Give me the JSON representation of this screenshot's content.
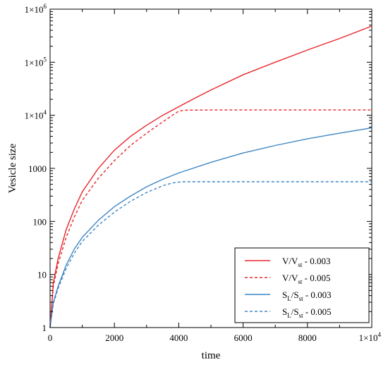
{
  "chart_data": {
    "type": "line",
    "xlabel": "time",
    "ylabel": "Vesicle size",
    "x_axis": {
      "range": [
        0,
        10000
      ],
      "scale": "linear",
      "ticks": [
        {
          "value": 0,
          "label": "0"
        },
        {
          "value": 2000,
          "label": "2000"
        },
        {
          "value": 4000,
          "label": "4000"
        },
        {
          "value": 6000,
          "label": "6000"
        },
        {
          "value": 8000,
          "label": "8000"
        },
        {
          "value": 10000,
          "label_base": "1×10",
          "label_exp": "4"
        }
      ]
    },
    "y_axis": {
      "range": [
        1,
        1000000
      ],
      "scale": "log",
      "ticks": [
        {
          "value": 1,
          "label": "1"
        },
        {
          "value": 10,
          "label": "10"
        },
        {
          "value": 100,
          "label": "100"
        },
        {
          "value": 1000,
          "label": "1000"
        },
        {
          "value": 10000,
          "label_base": "1×10",
          "label_exp": "4"
        },
        {
          "value": 100000,
          "label_base": "1×10",
          "label_exp": "5"
        },
        {
          "value": 1000000,
          "label_base": "1×10",
          "label_exp": "6"
        }
      ]
    },
    "grid": false,
    "legend_position": "bottom-right",
    "series": [
      {
        "name_main": "V/V",
        "name_sub": "st",
        "name_tail": " - 0.003",
        "color": "#e8262b",
        "style": "solid",
        "points": [
          [
            0,
            1
          ],
          [
            100,
            7
          ],
          [
            250,
            20
          ],
          [
            500,
            70
          ],
          [
            750,
            170
          ],
          [
            1000,
            360
          ],
          [
            1500,
            1000
          ],
          [
            2000,
            2200
          ],
          [
            2500,
            4000
          ],
          [
            3000,
            6500
          ],
          [
            3500,
            10000
          ],
          [
            4000,
            14500
          ],
          [
            4500,
            21000
          ],
          [
            5000,
            30000
          ],
          [
            6000,
            58000
          ],
          [
            7000,
            100000
          ],
          [
            8000,
            170000
          ],
          [
            9000,
            280000
          ],
          [
            10000,
            480000
          ]
        ]
      },
      {
        "name_main": "V/V",
        "name_sub": "st",
        "name_tail": " - 0.005",
        "color": "#e8262b",
        "style": "dashed",
        "points": [
          [
            0,
            1
          ],
          [
            100,
            6
          ],
          [
            250,
            16
          ],
          [
            500,
            50
          ],
          [
            750,
            120
          ],
          [
            1000,
            250
          ],
          [
            1500,
            650
          ],
          [
            2000,
            1400
          ],
          [
            2500,
            2700
          ],
          [
            3000,
            4600
          ],
          [
            3500,
            7500
          ],
          [
            3800,
            10000
          ],
          [
            4000,
            12000
          ],
          [
            4200,
            12500
          ],
          [
            5000,
            12600
          ],
          [
            6000,
            12600
          ],
          [
            7000,
            12600
          ],
          [
            8000,
            12600
          ],
          [
            9000,
            12600
          ],
          [
            10000,
            12600
          ]
        ]
      },
      {
        "name_main": "S",
        "name_sub": "L",
        "name_mid": "/S",
        "name_sub2": "st",
        "name_tail": " - 0.003",
        "color": "#3f86c4",
        "style": "solid",
        "points": [
          [
            0,
            1
          ],
          [
            100,
            3
          ],
          [
            250,
            6
          ],
          [
            500,
            15
          ],
          [
            750,
            30
          ],
          [
            1000,
            50
          ],
          [
            1500,
            105
          ],
          [
            2000,
            190
          ],
          [
            2500,
            300
          ],
          [
            3000,
            450
          ],
          [
            3500,
            620
          ],
          [
            4000,
            820
          ],
          [
            5000,
            1300
          ],
          [
            6000,
            1950
          ],
          [
            7000,
            2700
          ],
          [
            8000,
            3600
          ],
          [
            9000,
            4600
          ],
          [
            10000,
            5800
          ]
        ]
      },
      {
        "name_main": "S",
        "name_sub": "L",
        "name_mid": "/S",
        "name_sub2": "st",
        "name_tail": " - 0.005",
        "color": "#3f86c4",
        "style": "dashed",
        "points": [
          [
            0,
            1
          ],
          [
            100,
            2.8
          ],
          [
            250,
            5.5
          ],
          [
            500,
            13
          ],
          [
            750,
            25
          ],
          [
            1000,
            42
          ],
          [
            1500,
            85
          ],
          [
            2000,
            150
          ],
          [
            2500,
            240
          ],
          [
            3000,
            350
          ],
          [
            3500,
            470
          ],
          [
            3800,
            530
          ],
          [
            4000,
            550
          ],
          [
            4200,
            560
          ],
          [
            5000,
            560
          ],
          [
            6000,
            560
          ],
          [
            7000,
            560
          ],
          [
            8000,
            560
          ],
          [
            9000,
            560
          ],
          [
            10000,
            560
          ]
        ]
      }
    ]
  }
}
